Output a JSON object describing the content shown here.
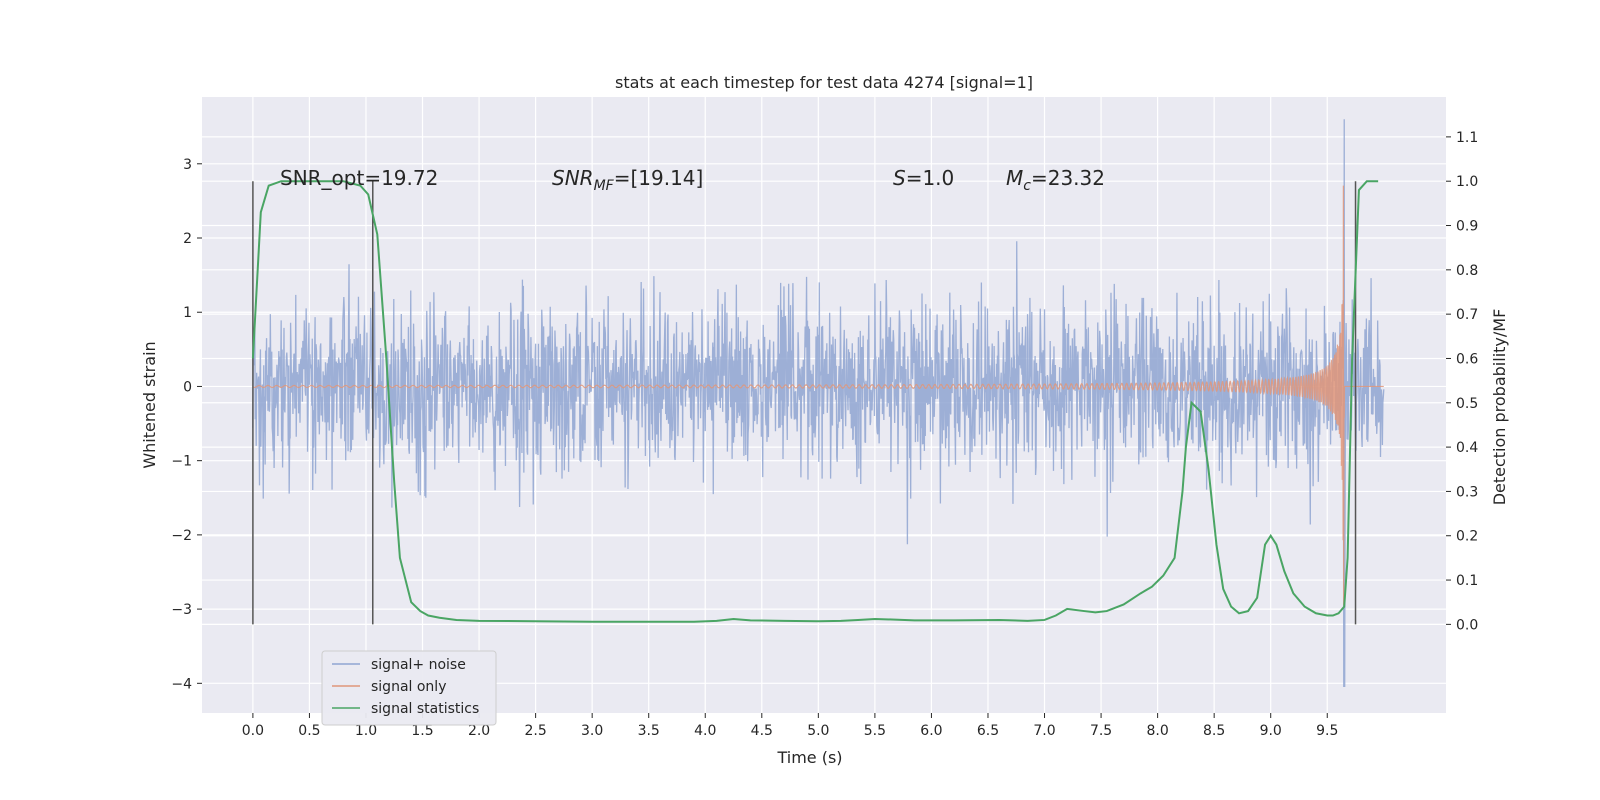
{
  "chart_data": {
    "type": "line",
    "title": "stats at each timestep for test data 4274 [signal=1]",
    "xlabel": "Time (s)",
    "ylabel_left": "Whitened strain",
    "ylabel_right": "Detection probability/MF",
    "xlim": [
      -0.45,
      10.55
    ],
    "ylim_left": [
      -4.4,
      3.9
    ],
    "ylim_right": [
      -0.2,
      1.19
    ],
    "x_ticks": [
      "0.0",
      "0.5",
      "1.0",
      "1.5",
      "2.0",
      "2.5",
      "3.0",
      "3.5",
      "4.0",
      "4.5",
      "5.0",
      "5.5",
      "6.0",
      "6.5",
      "7.0",
      "7.5",
      "8.0",
      "8.5",
      "9.0",
      "9.5"
    ],
    "y_ticks_left": [
      "3",
      "2",
      "1",
      "0",
      "−1",
      "−2",
      "−3",
      "−4"
    ],
    "y_ticks_right": [
      "1.1",
      "1.0",
      "0.9",
      "0.8",
      "0.7",
      "0.6",
      "0.5",
      "0.4",
      "0.3",
      "0.2",
      "0.1",
      "0.0"
    ],
    "grid": true,
    "legend_position": "lower-left",
    "annotations": {
      "snr_opt": "SNR_opt=19.72",
      "snr_mf": "SNR",
      "snr_mf_sub": "MF",
      "snr_mf_val": "=[19.14]",
      "s": "S",
      "s_val": "=1.0",
      "mc": "M",
      "mc_sub": "c",
      "mc_val": "=23.32"
    },
    "vertical_lines_x": [
      0.0,
      1.06,
      9.75
    ],
    "series": [
      {
        "name": "signal+ noise",
        "color": "#8fa5d1",
        "note_envelope": {
          "t_start": 0.0,
          "t_end": 10.0,
          "typical_max": 1.0,
          "typical_min": -1.1,
          "spike_max": 3.6,
          "spike_min": -4.05,
          "spike_time": 9.65
        }
      },
      {
        "name": "signal only",
        "color": "#e0967a",
        "chirp": {
          "t_start": 0.0,
          "t_end": 9.65,
          "visible_from": 5.0,
          "peak_amplitude": 2.95,
          "peak_time": 9.65
        }
      },
      {
        "name": "signal statistics",
        "color": "#4aa564",
        "x": [
          0.0,
          0.07,
          0.14,
          0.25,
          0.4,
          0.6,
          0.8,
          0.95,
          1.02,
          1.1,
          1.18,
          1.25,
          1.3,
          1.4,
          1.48,
          1.55,
          1.65,
          1.8,
          2.0,
          2.5,
          3.0,
          3.5,
          3.9,
          4.1,
          4.25,
          4.4,
          4.7,
          5.0,
          5.2,
          5.35,
          5.5,
          5.65,
          5.85,
          6.2,
          6.6,
          6.85,
          7.0,
          7.1,
          7.2,
          7.35,
          7.45,
          7.55,
          7.7,
          7.85,
          7.95,
          8.05,
          8.15,
          8.22,
          8.25,
          8.3,
          8.38,
          8.45,
          8.52,
          8.58,
          8.65,
          8.72,
          8.8,
          8.88,
          8.95,
          9.0,
          9.05,
          9.12,
          9.2,
          9.3,
          9.4,
          9.5,
          9.55,
          9.6,
          9.65,
          9.68,
          9.72,
          9.78,
          9.85,
          9.95
        ],
        "y": [
          0.6,
          0.93,
          0.99,
          1.0,
          1.0,
          1.0,
          1.0,
          0.99,
          0.97,
          0.88,
          0.6,
          0.32,
          0.15,
          0.05,
          0.03,
          0.02,
          0.015,
          0.01,
          0.008,
          0.007,
          0.006,
          0.006,
          0.006,
          0.008,
          0.012,
          0.009,
          0.008,
          0.007,
          0.008,
          0.01,
          0.012,
          0.011,
          0.009,
          0.009,
          0.01,
          0.008,
          0.01,
          0.02,
          0.035,
          0.03,
          0.027,
          0.03,
          0.045,
          0.07,
          0.085,
          0.11,
          0.15,
          0.3,
          0.4,
          0.5,
          0.48,
          0.35,
          0.18,
          0.08,
          0.04,
          0.025,
          0.03,
          0.06,
          0.18,
          0.2,
          0.18,
          0.12,
          0.07,
          0.04,
          0.025,
          0.02,
          0.02,
          0.025,
          0.04,
          0.15,
          0.6,
          0.98,
          1.0,
          1.0
        ]
      }
    ]
  }
}
